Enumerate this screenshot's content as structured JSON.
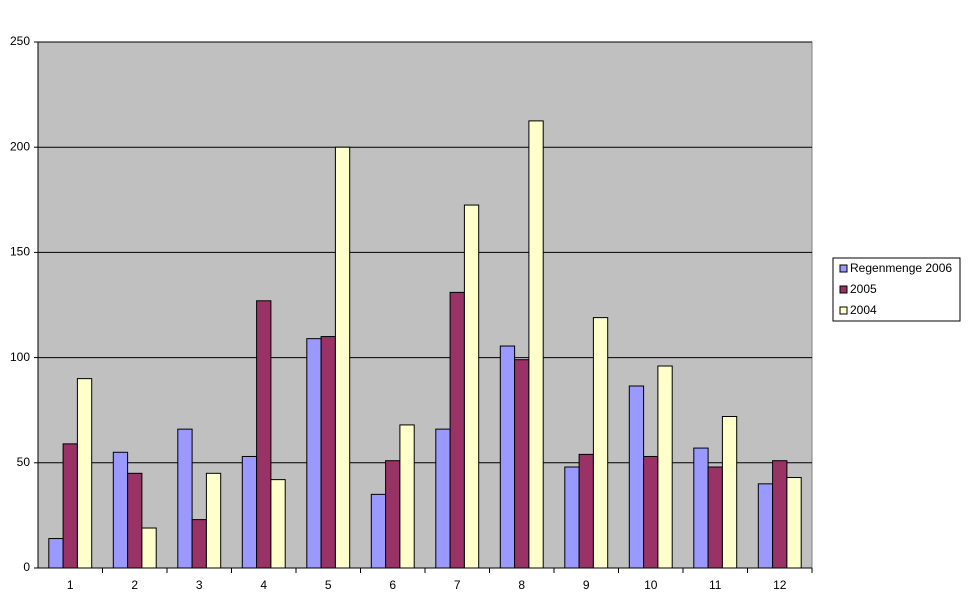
{
  "chart_data": {
    "type": "bar",
    "categories": [
      "1",
      "2",
      "3",
      "4",
      "5",
      "6",
      "7",
      "8",
      "9",
      "10",
      "11",
      "12"
    ],
    "series": [
      {
        "name": "Regenmenge 2006",
        "color": "#9999ff",
        "values": [
          14,
          55,
          66,
          53,
          109,
          35,
          66,
          105.5,
          48,
          86.5,
          57,
          40
        ]
      },
      {
        "name": "2005",
        "color": "#993366",
        "values": [
          59,
          45,
          23,
          127,
          110,
          51,
          131,
          99,
          54,
          53,
          48,
          51
        ]
      },
      {
        "name": "2004",
        "color": "#ffffcc",
        "values": [
          90,
          19,
          45,
          42,
          200,
          68,
          172.5,
          212.5,
          119,
          96,
          72,
          43
        ]
      }
    ],
    "ylim": [
      0,
      250
    ],
    "yticks": [
      0,
      50,
      100,
      150,
      200,
      250
    ],
    "grid": true,
    "legend": "right"
  }
}
